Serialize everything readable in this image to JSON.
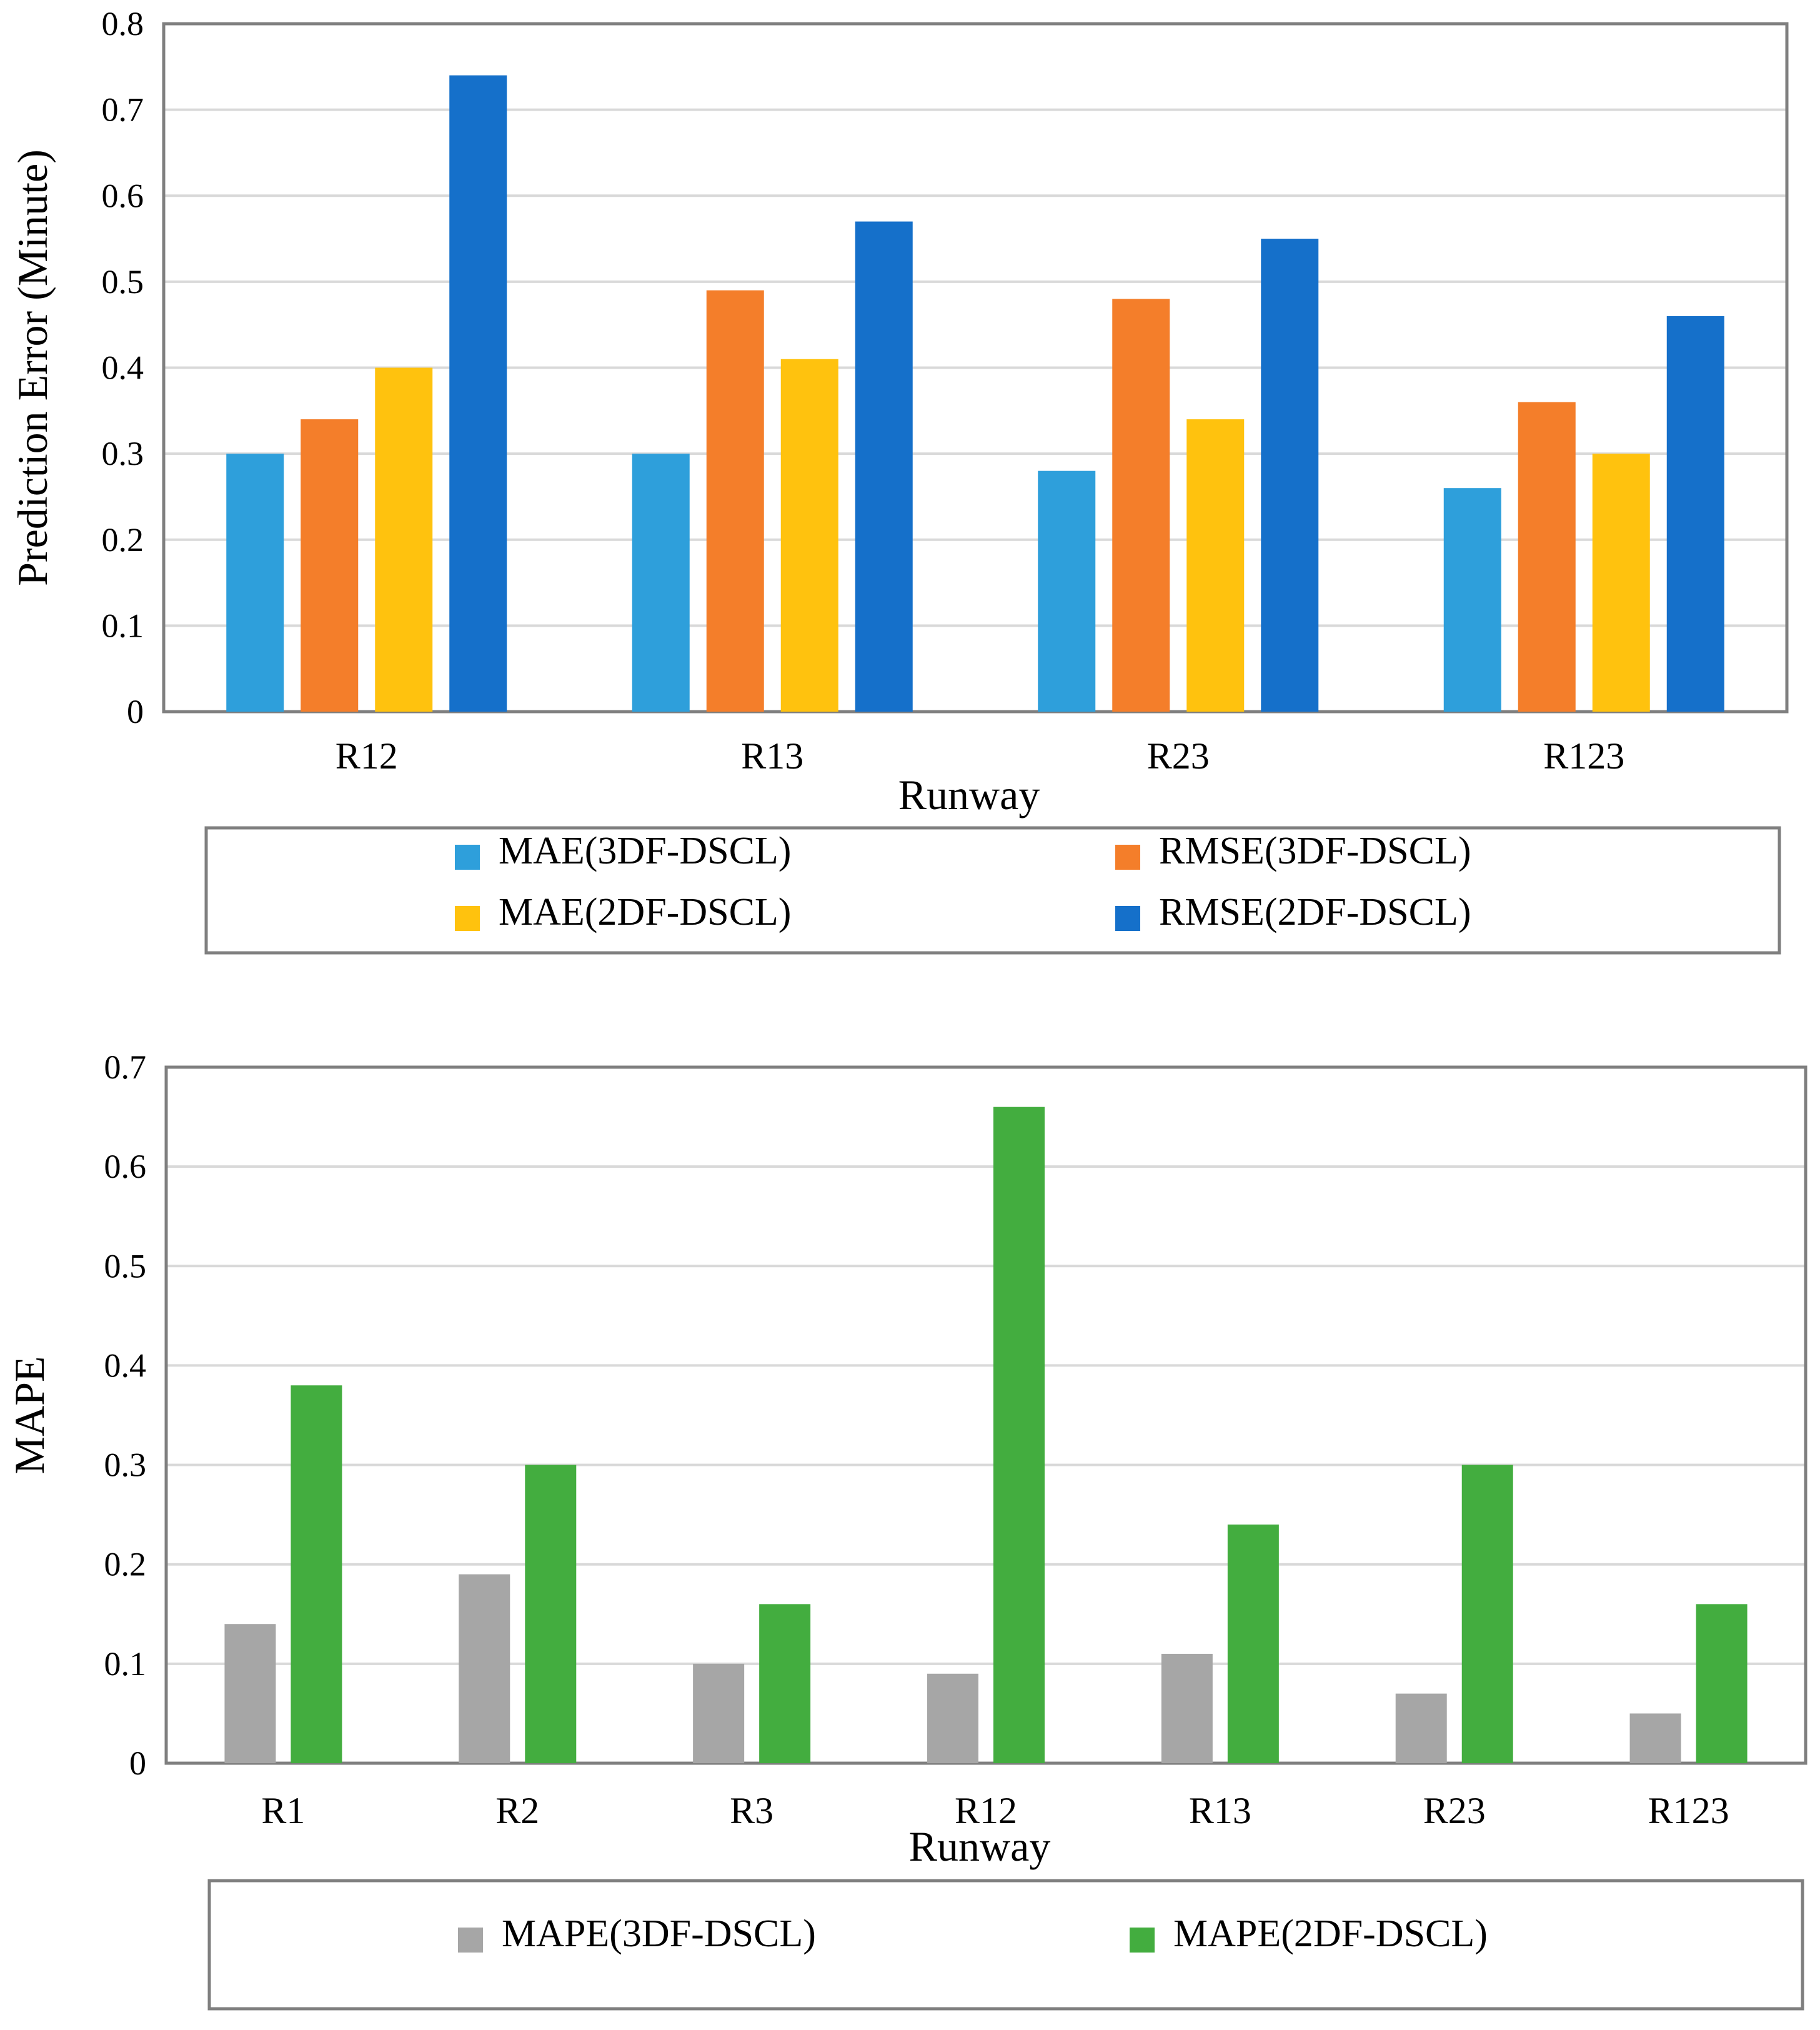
{
  "chart_data": [
    {
      "type": "bar",
      "title": "",
      "xlabel": "Runway",
      "ylabel": "Prediction Error (Minute)",
      "ylim": [
        0,
        0.8
      ],
      "yticks": [
        "0",
        "0.1",
        "0.2",
        "0.3",
        "0.4",
        "0.5",
        "0.6",
        "0.7",
        "0.8"
      ],
      "grid": true,
      "legend_position": "bottom",
      "categories": [
        "R12",
        "R13",
        "R23",
        "R123"
      ],
      "series": [
        {
          "name": "MAE(3DF-DSCL)",
          "color": "#2E9FDB",
          "values": [
            0.3,
            0.3,
            0.28,
            0.26
          ]
        },
        {
          "name": "RMSE(3DF-DSCL)",
          "color": "#F47E2A",
          "values": [
            0.34,
            0.49,
            0.48,
            0.36
          ]
        },
        {
          "name": "MAE(2DF-DSCL)",
          "color": "#FFC20E",
          "values": [
            0.4,
            0.41,
            0.34,
            0.3
          ]
        },
        {
          "name": "RMSE(2DF-DSCL)",
          "color": "#1570CA",
          "values": [
            0.74,
            0.57,
            0.55,
            0.46
          ]
        }
      ]
    },
    {
      "type": "bar",
      "title": "",
      "xlabel": "Runway",
      "ylabel": "MAPE",
      "ylim": [
        0,
        0.7
      ],
      "yticks": [
        "0",
        "0.1",
        "0.2",
        "0.3",
        "0.4",
        "0.5",
        "0.6",
        "0.7"
      ],
      "grid": true,
      "legend_position": "bottom",
      "categories": [
        "R1",
        "R2",
        "R3",
        "R12",
        "R13",
        "R23",
        "R123"
      ],
      "series": [
        {
          "name": "MAPE(3DF-DSCL)",
          "color": "#A6A6A6",
          "values": [
            0.14,
            0.19,
            0.1,
            0.09,
            0.11,
            0.07,
            0.05
          ]
        },
        {
          "name": "MAPE(2DF-DSCL)",
          "color": "#43AD3F",
          "values": [
            0.38,
            0.3,
            0.16,
            0.66,
            0.24,
            0.3,
            0.16
          ]
        }
      ]
    }
  ]
}
